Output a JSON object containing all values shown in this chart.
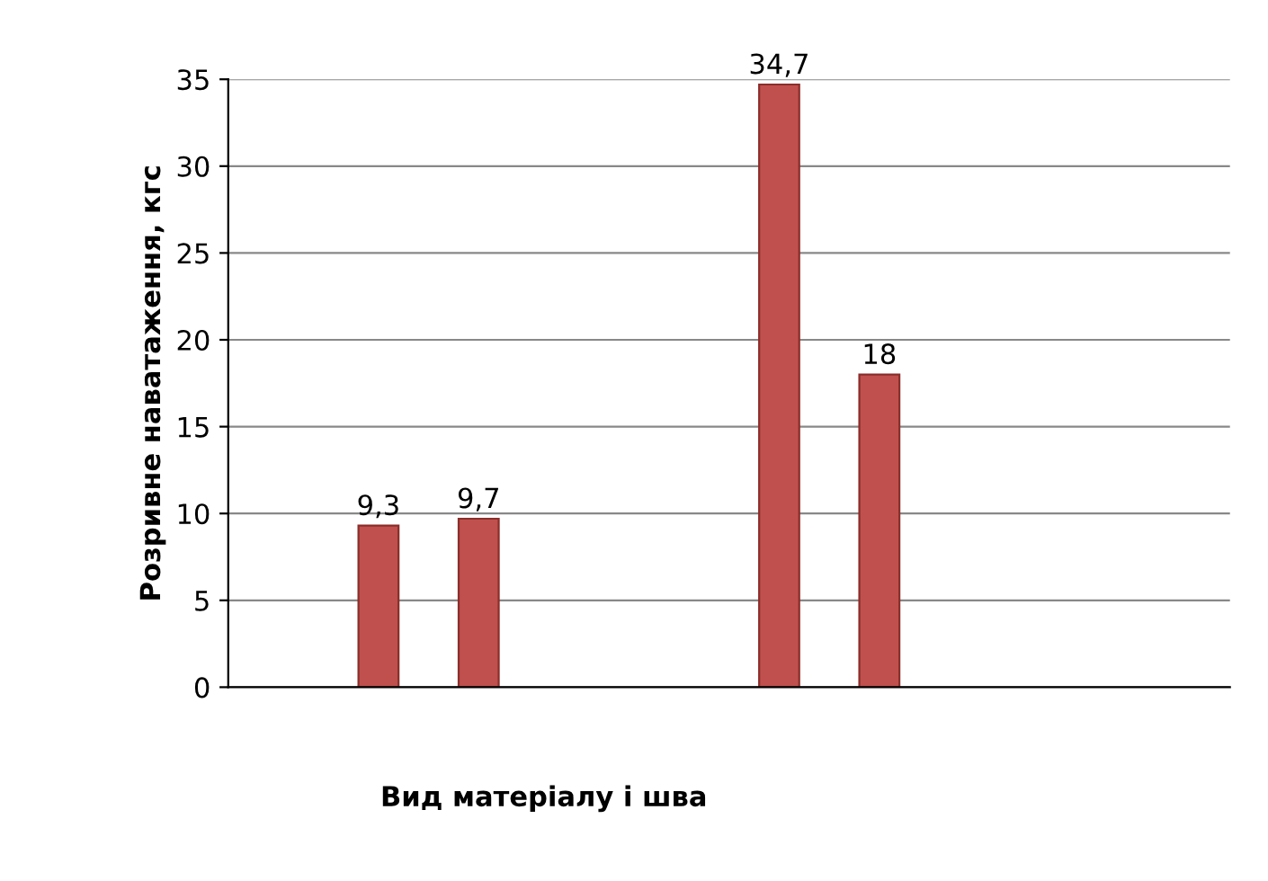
{
  "chart_data": {
    "type": "bar",
    "categories": [
      null,
      null,
      null,
      null,
      null,
      null,
      null,
      null,
      null,
      null
    ],
    "values": [
      null,
      9.3,
      9.7,
      null,
      null,
      34.7,
      18,
      null,
      null,
      null
    ],
    "value_labels": [
      null,
      "9,3",
      "9,7",
      null,
      null,
      "34,7",
      "18",
      null,
      null,
      null
    ],
    "color": "#c0504d",
    "xlabel": "Вид матеріалу і шва",
    "ylabel": "Розривне наватаження, кгс",
    "ylim": [
      0,
      35
    ],
    "yticks": [
      0,
      5,
      10,
      15,
      20,
      25,
      30,
      35
    ],
    "grid": "y"
  }
}
